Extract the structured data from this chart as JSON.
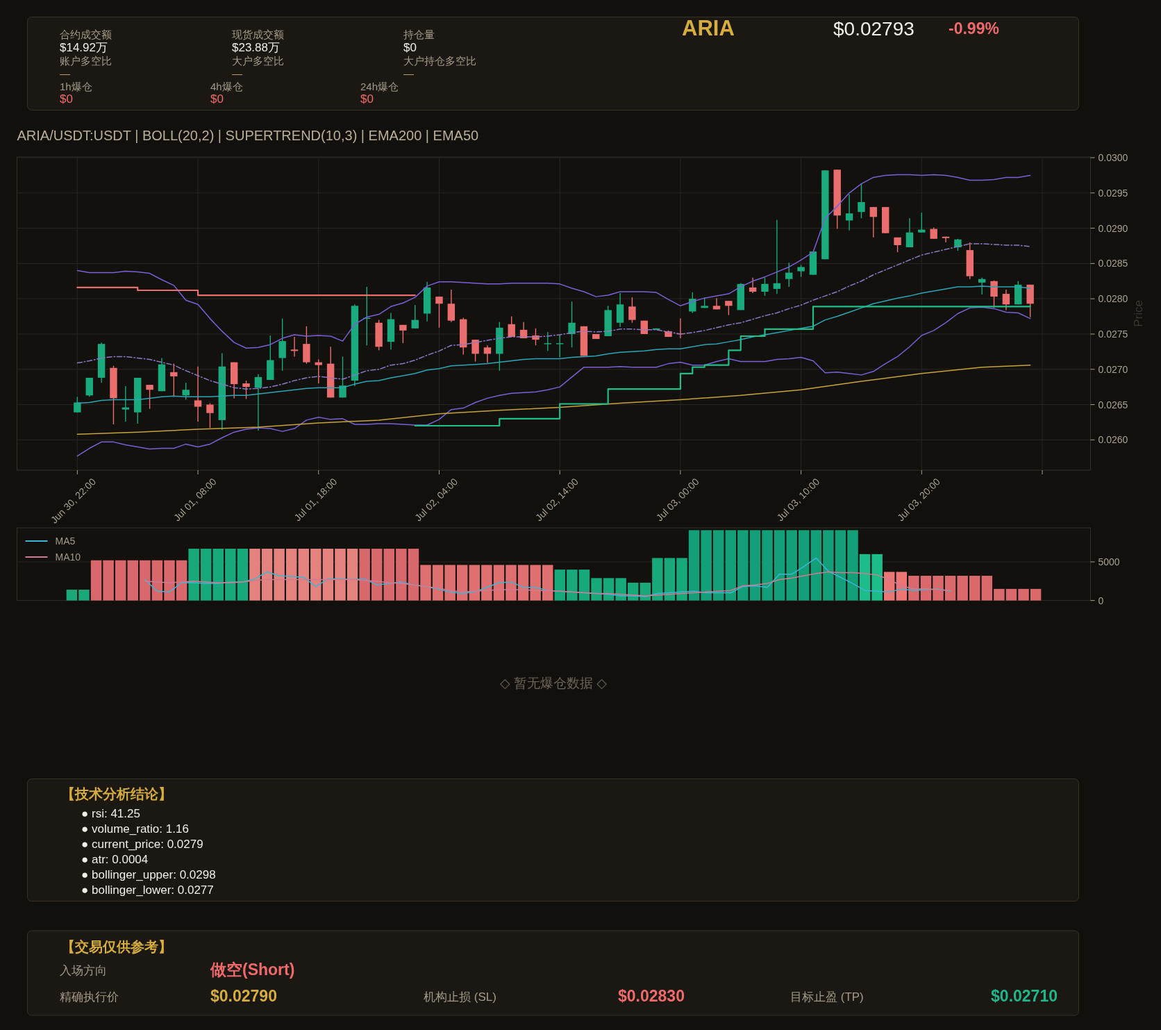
{
  "chart_data": [
    {
      "type": "other",
      "title": "ARIA",
      "annotations": [
        "$0.02793",
        "-0.99%",
        "合约成交额",
        "$14.92万",
        "账户多空比",
        "—",
        "现货成交额",
        "$23.88万",
        "大户多空比",
        "—",
        "持仓量",
        "$0",
        "大户持仓多空比",
        "—",
        "1h爆仓",
        "$0",
        "4h爆仓",
        "$0",
        "24h爆仓",
        "$0"
      ]
    },
    {
      "type": "candlestick",
      "title": "ARIA/USDT:USDT | BOLL(20,2) | SUPERTREND(10,3) | EMA200 | EMA50",
      "ylabel": "Price",
      "x": [
        "--06-30T22:00",
        "--06-30T23:00",
        "--07-01T00:00",
        "--07-01T01:00",
        "--07-01T02:00",
        "--07-01T03:00",
        "--07-01T04:00",
        "--07-01T05:00",
        "--07-01T06:00",
        "--07-01T07:00",
        "--07-01T08:00",
        "--07-01T09:00",
        "--07-01T10:00",
        "--07-01T11:00",
        "--07-01T12:00",
        "--07-01T13:00",
        "--07-01T14:00",
        "--07-01T15:00",
        "--07-01T16:00",
        "--07-01T17:00",
        "--07-01T18:00",
        "--07-01T19:00",
        "--07-01T20:00",
        "--07-01T21:00",
        "--07-01T22:00",
        "--07-01T23:00",
        "--07-02T00:00",
        "--07-02T01:00",
        "--07-02T02:00",
        "--07-02T03:00",
        "--07-02T04:00",
        "--07-02T05:00",
        "--07-02T06:00",
        "--07-02T07:00",
        "--07-02T08:00",
        "--07-02T09:00",
        "--07-02T10:00",
        "--07-02T11:00",
        "--07-02T12:00",
        "--07-02T13:00",
        "--07-02T14:00",
        "--07-02T15:00",
        "--07-02T16:00",
        "--07-02T17:00",
        "--07-02T18:00",
        "--07-02T19:00",
        "--07-02T20:00",
        "--07-02T21:00",
        "--07-02T22:00",
        "--07-02T23:00",
        "--07-03T00:00",
        "--07-03T01:00",
        "--07-03T02:00",
        "--07-03T03:00",
        "--07-03T04:00",
        "--07-03T05:00",
        "--07-03T06:00",
        "--07-03T07:00",
        "--07-03T08:00",
        "--07-03T09:00",
        "--07-03T10:00",
        "--07-03T11:00",
        "--07-03T12:00",
        "--07-03T13:00",
        "--07-03T14:00",
        "--07-03T15:00",
        "--07-03T16:00",
        "--07-03T17:00",
        "--07-03T18:00",
        "--07-03T19:00",
        "--07-03T20:00",
        "--07-03T21:00",
        "--07-03T22:00",
        "--07-03T23:00",
        "--07-04T00:00",
        "--07-04T01:00",
        "--07-04T02:00",
        "--07-04T03:00",
        "--07-04T04:00",
        "--07-04T05:00"
      ],
      "ohlc": [
        [
          0.02639,
          0.02661,
          0.02639,
          0.02653
        ],
        [
          0.02663,
          0.02688,
          0.02661,
          0.02688
        ],
        [
          0.02688,
          0.02738,
          0.02681,
          0.02736
        ],
        [
          0.02702,
          0.02705,
          0.02622,
          0.02659
        ],
        [
          0.02643,
          0.02676,
          0.02626,
          0.02646
        ],
        [
          0.02639,
          0.02688,
          0.02623,
          0.02688
        ],
        [
          0.02678,
          0.02678,
          0.02644,
          0.02671
        ],
        [
          0.02669,
          0.02716,
          0.02669,
          0.02707
        ],
        [
          0.02696,
          0.02708,
          0.02661,
          0.0269
        ],
        [
          0.02663,
          0.02681,
          0.02657,
          0.02671
        ],
        [
          0.02656,
          0.02704,
          0.02626,
          0.02647
        ],
        [
          0.0265,
          0.02652,
          0.02617,
          0.02638
        ],
        [
          0.02628,
          0.02723,
          0.02614,
          0.02704
        ],
        [
          0.0271,
          0.0271,
          0.02659,
          0.02679
        ],
        [
          0.0268,
          0.02684,
          0.02658,
          0.02675
        ],
        [
          0.02674,
          0.02693,
          0.02613,
          0.02689
        ],
        [
          0.02685,
          0.02748,
          0.02685,
          0.02713
        ],
        [
          0.02716,
          0.02772,
          0.02698,
          0.0274
        ],
        [
          0.02728,
          0.02746,
          0.02718,
          0.02726
        ],
        [
          0.02736,
          0.02761,
          0.02708,
          0.0271
        ],
        [
          0.0271,
          0.02714,
          0.0268,
          0.02706
        ],
        [
          0.02708,
          0.02732,
          0.0266,
          0.0266
        ],
        [
          0.0266,
          0.02718,
          0.0266,
          0.02677
        ],
        [
          0.02684,
          0.02792,
          0.02676,
          0.0279
        ],
        [
          0.02772,
          0.02817,
          0.02734,
          0.02773
        ],
        [
          0.02766,
          0.0277,
          0.02727,
          0.02732
        ],
        [
          0.02739,
          0.0278,
          0.02728,
          0.02771
        ],
        [
          0.02763,
          0.02763,
          0.02737,
          0.02755
        ],
        [
          0.02758,
          0.02791,
          0.02758,
          0.0277
        ],
        [
          0.02779,
          0.02824,
          0.02768,
          0.02816
        ],
        [
          0.02803,
          0.02803,
          0.02759,
          0.02793
        ],
        [
          0.02793,
          0.02813,
          0.02767,
          0.02769
        ],
        [
          0.02771,
          0.02773,
          0.02721,
          0.02731
        ],
        [
          0.02742,
          0.02742,
          0.02711,
          0.02722
        ],
        [
          0.02731,
          0.02734,
          0.02709,
          0.02722
        ],
        [
          0.02722,
          0.02767,
          0.02698,
          0.02759
        ],
        [
          0.02764,
          0.02775,
          0.02746,
          0.02746
        ],
        [
          0.02756,
          0.02767,
          0.02744,
          0.02744
        ],
        [
          0.02748,
          0.02758,
          0.02734,
          0.02742
        ],
        [
          0.02736,
          0.02753,
          0.02726,
          0.02737
        ],
        [
          0.02736,
          0.02749,
          0.02717,
          0.02737
        ],
        [
          0.0275,
          0.02796,
          0.02731,
          0.02766
        ],
        [
          0.02761,
          0.02761,
          0.02719,
          0.02719
        ],
        [
          0.0275,
          0.0275,
          0.02743,
          0.02743
        ],
        [
          0.02747,
          0.0279,
          0.02747,
          0.02784
        ],
        [
          0.02766,
          0.02808,
          0.0276,
          0.02792
        ],
        [
          0.02789,
          0.02802,
          0.02766,
          0.0277
        ],
        [
          0.02769,
          0.02769,
          0.0275,
          0.0275
        ],
        [
          0.02756,
          0.02758,
          0.02756,
          0.02758
        ],
        [
          0.02754,
          0.02755,
          0.02746,
          0.02746
        ],
        [
          0.02751,
          0.02772,
          0.02744,
          0.0275
        ],
        [
          0.02782,
          0.02809,
          0.0278,
          0.028
        ],
        [
          0.02787,
          0.02802,
          0.02787,
          0.0279
        ],
        [
          0.0279,
          0.02801,
          0.02785,
          0.02785
        ],
        [
          0.02797,
          0.02797,
          0.02777,
          0.0279
        ],
        [
          0.02784,
          0.02822,
          0.02784,
          0.02821
        ],
        [
          0.02816,
          0.0283,
          0.02808,
          0.0281
        ],
        [
          0.0281,
          0.0283,
          0.02804,
          0.02821
        ],
        [
          0.02814,
          0.02912,
          0.02807,
          0.02822
        ],
        [
          0.02828,
          0.02851,
          0.02817,
          0.02837
        ],
        [
          0.02839,
          0.02848,
          0.02831,
          0.02845
        ],
        [
          0.02834,
          0.02867,
          0.02834,
          0.02867
        ],
        [
          0.02856,
          0.02982,
          0.02856,
          0.02982
        ],
        [
          0.02983,
          0.02983,
          0.02899,
          0.02918
        ],
        [
          0.02911,
          0.02948,
          0.02897,
          0.02921
        ],
        [
          0.02923,
          0.02963,
          0.02914,
          0.02937
        ],
        [
          0.0293,
          0.0293,
          0.02887,
          0.02916
        ],
        [
          0.0293,
          0.0293,
          0.02893,
          0.02893
        ],
        [
          0.02887,
          0.02887,
          0.02866,
          0.02876
        ],
        [
          0.02873,
          0.02914,
          0.02873,
          0.02894
        ],
        [
          0.02894,
          0.02922,
          0.02894,
          0.02898
        ],
        [
          0.02899,
          0.02901,
          0.02885,
          0.02885
        ],
        [
          0.02888,
          0.02888,
          0.0288,
          0.02886
        ],
        [
          0.02873,
          0.02885,
          0.02868,
          0.02884
        ],
        [
          0.02869,
          0.0288,
          0.02828,
          0.02832
        ],
        [
          0.02823,
          0.0283,
          0.02806,
          0.02828
        ],
        [
          0.02825,
          0.02826,
          0.02787,
          0.02803
        ],
        [
          0.02807,
          0.02813,
          0.02784,
          0.02792
        ],
        [
          0.02792,
          0.02825,
          0.02792,
          0.0282
        ],
        [
          0.0282,
          0.0282,
          0.02774,
          0.02793
        ]
      ],
      "colors": [
        "#19aa7d",
        "#19aa7d",
        "#19aa7d",
        "#eb6e6e",
        "#19aa7d",
        "#19aa7d",
        "#eb6e6e",
        "#19aa7d",
        "#eb6e6e",
        "#19aa7d",
        "#eb6e6e",
        "#eb6e6e",
        "#19aa7d",
        "#eb6e6e",
        "#eb6e6e",
        "#19aa7d",
        "#19aa7d",
        "#19aa7d",
        "#eb6e6e",
        "#eb6e6e",
        "#eb6e6e",
        "#eb6e6e",
        "#19aa7d",
        "#19aa7d",
        "#19aa7d",
        "#eb6e6e",
        "#19aa7d",
        "#eb6e6e",
        "#19aa7d",
        "#19aa7d",
        "#eb6e6e",
        "#eb6e6e",
        "#eb6e6e",
        "#eb6e6e",
        "#eb6e6e",
        "#19aa7d",
        "#eb6e6e",
        "#eb6e6e",
        "#eb6e6e",
        "#19aa7d",
        "#19aa7d",
        "#19aa7d",
        "#eb6e6e",
        "#eb6e6e",
        "#19aa7d",
        "#19aa7d",
        "#eb6e6e",
        "#eb6e6e",
        "#19aa7d",
        "#eb6e6e",
        "#eb6e6e",
        "#19aa7d",
        "#19aa7d",
        "#eb6e6e",
        "#eb6e6e",
        "#19aa7d",
        "#eb6e6e",
        "#19aa7d",
        "#19aa7d",
        "#19aa7d",
        "#19aa7d",
        "#19aa7d",
        "#19aa7d",
        "#eb6e6e",
        "#19aa7d",
        "#19aa7d",
        "#eb6e6e",
        "#eb6e6e",
        "#eb6e6e",
        "#19aa7d",
        "#19aa7d",
        "#eb6e6e",
        "#eb6e6e",
        "#19aa7d",
        "#eb6e6e",
        "#19aa7d",
        "#eb6e6e",
        "#eb6e6e",
        "#19aa7d",
        "#eb6e6e"
      ],
      "series": [
        {
          "type": "line",
          "color": "#7b5fd7",
          "values": [
            0.0284,
            0.02837,
            0.02837,
            0.02837,
            0.02839,
            0.02838,
            0.02836,
            0.02827,
            0.02819,
            0.02798,
            0.02792,
            0.02772,
            0.02754,
            0.02738,
            0.0273,
            0.02731,
            0.02735,
            0.02744,
            0.02749,
            0.02747,
            0.02748,
            0.02747,
            0.0274,
            0.02764,
            0.02774,
            0.02778,
            0.02789,
            0.02794,
            0.02802,
            0.02818,
            0.02824,
            0.02824,
            0.02823,
            0.02822,
            0.02821,
            0.02821,
            0.02822,
            0.02822,
            0.02822,
            0.02822,
            0.02821,
            0.02815,
            0.0281,
            0.02803,
            0.02805,
            0.0281,
            0.0281,
            0.0281,
            0.02809,
            0.02799,
            0.0279,
            0.02796,
            0.02801,
            0.02804,
            0.02807,
            0.02817,
            0.02825,
            0.02831,
            0.02838,
            0.02845,
            0.02855,
            0.02866,
            0.02914,
            0.02931,
            0.0295,
            0.02963,
            0.02972,
            0.02975,
            0.02976,
            0.02976,
            0.02975,
            0.02976,
            0.02975,
            0.02972,
            0.02968,
            0.02968,
            0.02969,
            0.02972,
            0.02972,
            0.02975
          ]
        },
        {
          "type": "line",
          "color": "#8a78c6",
          "line_style": "dashdot",
          "values": [
            0.02709,
            0.02712,
            0.02716,
            0.02718,
            0.02718,
            0.02716,
            0.02714,
            0.0271,
            0.02706,
            0.02698,
            0.02691,
            0.02684,
            0.02679,
            0.02674,
            0.02672,
            0.02673,
            0.02675,
            0.02679,
            0.02684,
            0.02688,
            0.0269,
            0.02688,
            0.02686,
            0.02692,
            0.02698,
            0.027,
            0.02706,
            0.02708,
            0.02713,
            0.0272,
            0.02726,
            0.02734,
            0.02735,
            0.02738,
            0.02741,
            0.02744,
            0.02746,
            0.02746,
            0.02746,
            0.02747,
            0.02749,
            0.02752,
            0.02754,
            0.02753,
            0.02754,
            0.02757,
            0.02757,
            0.02756,
            0.02756,
            0.02753,
            0.0275,
            0.02752,
            0.02755,
            0.02759,
            0.02763,
            0.02766,
            0.02771,
            0.02776,
            0.0278,
            0.02786,
            0.02791,
            0.02798,
            0.02804,
            0.0281,
            0.02818,
            0.02825,
            0.02834,
            0.02841,
            0.02848,
            0.02855,
            0.02862,
            0.02866,
            0.0287,
            0.02874,
            0.02878,
            0.02878,
            0.02877,
            0.02876,
            0.02876,
            0.02874
          ]
        },
        {
          "type": "line",
          "color": "#7b5fd7",
          "values": [
            0.02577,
            0.02588,
            0.02597,
            0.02597,
            0.02593,
            0.0259,
            0.02587,
            0.02588,
            0.02588,
            0.02594,
            0.0259,
            0.02594,
            0.02603,
            0.02611,
            0.02615,
            0.02617,
            0.02616,
            0.02612,
            0.02616,
            0.02628,
            0.02632,
            0.02629,
            0.0263,
            0.02622,
            0.02622,
            0.02623,
            0.02623,
            0.02622,
            0.02621,
            0.02621,
            0.02629,
            0.02643,
            0.02645,
            0.02653,
            0.02659,
            0.02663,
            0.02666,
            0.02667,
            0.02668,
            0.02671,
            0.02675,
            0.02689,
            0.02703,
            0.02703,
            0.02703,
            0.02704,
            0.02703,
            0.02703,
            0.02703,
            0.02708,
            0.0271,
            0.02706,
            0.02706,
            0.02711,
            0.02715,
            0.02711,
            0.02711,
            0.02711,
            0.02714,
            0.02715,
            0.02717,
            0.02712,
            0.02695,
            0.02696,
            0.02694,
            0.02692,
            0.02697,
            0.02708,
            0.02718,
            0.02732,
            0.02748,
            0.02755,
            0.02766,
            0.02779,
            0.02787,
            0.02788,
            0.02786,
            0.02781,
            0.0278,
            0.02772
          ]
        },
        {
          "type": "line",
          "color": "#2aa6b8",
          "values": [
            0.02652,
            0.02653,
            0.02656,
            0.02657,
            0.02657,
            0.02657,
            0.02659,
            0.02661,
            0.02662,
            0.02661,
            0.02661,
            0.02661,
            0.02662,
            0.02663,
            0.02663,
            0.02665,
            0.02667,
            0.02669,
            0.02671,
            0.02673,
            0.02674,
            0.02674,
            0.02674,
            0.02679,
            0.02683,
            0.02684,
            0.02688,
            0.02691,
            0.02694,
            0.02699,
            0.02701,
            0.02705,
            0.02706,
            0.02707,
            0.02708,
            0.0271,
            0.02712,
            0.02714,
            0.02715,
            0.02715,
            0.02715,
            0.02717,
            0.02718,
            0.02719,
            0.02722,
            0.02724,
            0.02725,
            0.02726,
            0.02728,
            0.02729,
            0.02729,
            0.02732,
            0.02735,
            0.02736,
            0.02739,
            0.02742,
            0.02746,
            0.02749,
            0.02752,
            0.02755,
            0.02758,
            0.02761,
            0.0277,
            0.02775,
            0.02781,
            0.02787,
            0.02793,
            0.02797,
            0.02801,
            0.02804,
            0.02808,
            0.02811,
            0.02814,
            0.02817,
            0.02817,
            0.02818,
            0.02817,
            0.02817,
            0.02817,
            0.02815
          ]
        },
        {
          "type": "line",
          "color": "#c9a23a",
          "x": [
            "--06-30T22:00",
            "--07-01T03:00",
            "--07-01T08:00",
            "--07-01T13:00",
            "--07-01T18:00",
            "--07-01T23:00",
            "--07-02T04:00",
            "--07-02T09:00",
            "--07-02T14:00",
            "--07-02T19:00",
            "--07-03T00:00",
            "--07-03T05:00",
            "--07-03T10:00",
            "--07-03T15:00",
            "--07-03T20:00",
            "--07-04T01:00",
            "--07-04T05:00"
          ],
          "values": [
            0.02608,
            0.02611,
            0.02615,
            0.02618,
            0.02624,
            0.02628,
            0.02637,
            0.02642,
            0.02646,
            0.02652,
            0.02657,
            0.02663,
            0.02671,
            0.02683,
            0.02694,
            0.02703,
            0.02706
          ]
        },
        {
          "type": "step",
          "color": "#eb6e6e",
          "values": [
            0.02816,
            0.02816,
            0.02816,
            0.02816,
            0.02816,
            0.02812,
            0.02812,
            0.02812,
            0.02812,
            0.02812,
            0.02805,
            0.02805,
            0.02805,
            0.02805,
            0.02805,
            0.02805,
            0.02805,
            0.02805,
            0.02805,
            0.02805,
            0.02805,
            0.02805,
            0.02805,
            0.02805,
            0.02805,
            0.02805,
            0.02805,
            0.02805,
            0.02805,
            null,
            null,
            null,
            null,
            null,
            null,
            null,
            null,
            null,
            null,
            null,
            null,
            null,
            null,
            null,
            null,
            null,
            null,
            null,
            null,
            null,
            null,
            null,
            null,
            null,
            null,
            null,
            null,
            null,
            null,
            null,
            null,
            null,
            null,
            null,
            null,
            null,
            null,
            null,
            null,
            null,
            null,
            null,
            null,
            null,
            null,
            null,
            null,
            null,
            null,
            null
          ]
        },
        {
          "type": "step",
          "color": "#1fbf8a",
          "values": [
            null,
            null,
            null,
            null,
            null,
            null,
            null,
            null,
            null,
            null,
            null,
            null,
            null,
            null,
            null,
            null,
            null,
            null,
            null,
            null,
            null,
            null,
            null,
            null,
            null,
            null,
            null,
            null,
            0.0262,
            0.0262,
            0.0262,
            0.0262,
            0.0262,
            0.0262,
            0.0262,
            0.0263,
            0.0263,
            0.0263,
            0.0263,
            0.0263,
            0.02651,
            0.02651,
            0.02651,
            0.02651,
            0.02672,
            0.02672,
            0.02672,
            0.02672,
            0.02672,
            0.02672,
            0.02694,
            0.02703,
            0.02706,
            0.02706,
            0.02727,
            0.02747,
            0.02747,
            0.02757,
            0.02757,
            0.02757,
            0.02757,
            0.02789,
            0.02789,
            0.02789,
            0.02789,
            0.02789,
            0.02789,
            0.02789,
            0.02789,
            0.02789,
            0.02789,
            0.02789,
            0.02789,
            0.02789,
            0.02789,
            0.02789,
            0.02789,
            0.02789,
            0.02789,
            0.02789
          ]
        }
      ],
      "xlim": [
        "--06-30T17:00",
        "--07-04T10:00"
      ],
      "xticks": [
        {
          "value": "--06-30T22:00",
          "label": "Jun 30, 22:00"
        },
        {
          "value": "--07-01T08:00",
          "label": "Jul 01, 08:00"
        },
        {
          "value": "--07-01T18:00",
          "label": "Jul 01, 18:00"
        },
        {
          "value": "--07-02T04:00",
          "label": "Jul 02, 04:00"
        },
        {
          "value": "--07-02T14:00",
          "label": "Jul 02, 14:00"
        },
        {
          "value": "--07-03T00:00",
          "label": "Jul 03, 00:00"
        },
        {
          "value": "--07-03T10:00",
          "label": "Jul 03, 10:00"
        },
        {
          "value": "--07-03T20:00",
          "label": "Jul 03, 20:00"
        },
        {
          "value": "--07-04T06:00",
          "label": null
        }
      ],
      "ylim": [
        0.02557,
        0.03001
      ],
      "yticks": [
        {
          "value": 0.026,
          "label": "0.0260"
        },
        0.0265,
        {
          "value": 0.027,
          "label": "0.0270"
        },
        0.0275,
        {
          "value": 0.028,
          "label": "0.0280"
        },
        0.0285,
        {
          "value": 0.029,
          "label": "0.0290"
        },
        0.0295,
        {
          "value": 0.03,
          "label": "0.0300"
        }
      ],
      "grid": true
    },
    {
      "type": "bar",
      "categories": [
        null,
        null,
        null,
        null,
        null,
        null,
        null,
        null,
        null,
        null,
        null,
        null,
        null,
        null,
        null,
        null,
        null,
        null,
        null,
        null,
        null,
        null,
        null,
        null,
        null,
        null,
        null,
        null,
        null,
        null,
        null,
        null,
        null,
        null,
        null,
        null,
        null,
        null,
        null,
        null,
        null,
        null,
        null,
        null,
        null,
        null,
        null,
        null,
        null,
        null,
        null,
        null,
        null,
        null,
        null,
        null,
        null,
        null,
        null,
        null,
        null,
        null,
        null,
        null,
        null,
        null,
        null,
        null,
        null,
        null,
        null,
        null,
        null,
        null,
        null,
        null,
        null,
        null,
        null,
        null,
        null,
        null,
        null,
        null,
        null,
        null,
        null,
        null
      ],
      "series": [
        {
          "type": "bar",
          "values": [
            null,
            null,
            null,
            null,
            1400,
            1400,
            5200,
            5200,
            5200,
            5200,
            5200,
            5200,
            5200,
            5200,
            6700,
            6700,
            6700,
            6700,
            6700,
            6700,
            6700,
            6700,
            6700,
            6700,
            6700,
            6700,
            6700,
            6700,
            6700,
            6700,
            6700,
            6700,
            6700,
            4600,
            4600,
            4600,
            4600,
            4600,
            4600,
            4600,
            4600,
            4600,
            4600,
            4600,
            4000,
            4000,
            4000,
            2900,
            2900,
            2900,
            2300,
            2300,
            5500,
            5500,
            5500,
            9100,
            9100,
            9100,
            9100,
            9100,
            9100,
            9100,
            9100,
            9100,
            9100,
            9100,
            9100,
            9100,
            9100,
            6000,
            6000,
            3700,
            3700,
            3200,
            3200,
            3200,
            3200,
            3200,
            3200,
            3200,
            1500,
            1500,
            1500,
            1500,
            null,
            null,
            null,
            null
          ],
          "colors": [
            null,
            null,
            null,
            null,
            "#1aa87b",
            "#1aa87b",
            "#d8686b",
            "#d8686b",
            "#d8686b",
            "#d8686b",
            "#d8686b",
            "#d8686b",
            "#d8686b",
            "#d8686b",
            "#17a97c",
            "#17a97c",
            "#17a97c",
            "#17a97c",
            "#17a97c",
            "#e4837d",
            "#e4837d",
            "#e4837d",
            "#e4837d",
            "#e4837d",
            "#e4837d",
            "#e4837d",
            "#e4837d",
            "#e4837d",
            "#d8686b",
            "#d8686b",
            "#d8686b",
            "#d8686b",
            "#d8686b",
            "#e0706f",
            "#e0706f",
            "#e0706f",
            "#e0706f",
            "#e0706f",
            "#e0706f",
            "#e0706f",
            "#e0706f",
            "#e0706f",
            "#e0706f",
            "#e0706f",
            "#17a97c",
            "#17a97c",
            "#17a97c",
            "#17a97c",
            "#17a97c",
            "#17a97c",
            "#17a97c",
            "#17a97c",
            "#17a97c",
            "#17a97c",
            "#17a97c",
            "#13a078",
            "#13a078",
            "#13a078",
            "#13a078",
            "#13a078",
            "#13a078",
            "#13a078",
            "#13a078",
            "#13a078",
            "#13a078",
            "#13a078",
            "#13a078",
            "#13a078",
            "#13a078",
            "#1dbd8b",
            "#1dbd8b",
            "#ec7676",
            "#ec7676",
            "#d9696b",
            "#d9696b",
            "#d9696b",
            "#d9696b",
            "#d9696b",
            "#d9696b",
            "#d9696b",
            "#d86a6c",
            "#d86a6c",
            "#d86a6c",
            "#d86a6c",
            null,
            null,
            null,
            null
          ]
        },
        {
          "type": "line",
          "name": "MA5",
          "color": "#3fb6d6",
          "values": [
            null,
            null,
            null,
            null,
            null,
            null,
            null,
            null,
            null,
            null,
            2700,
            1200,
            1100,
            2300,
            2300,
            2200,
            2200,
            2400,
            2400,
            2800,
            3700,
            3200,
            3100,
            3000,
            1800,
            2800,
            2800,
            2700,
            2800,
            2000,
            2200,
            2400,
            2000,
            1800,
            1500,
            1100,
            900,
            1100,
            1700,
            2300,
            2400,
            1700,
            1700,
            1300,
            1200,
            1100,
            1000,
            900,
            800,
            600,
            600,
            500,
            900,
            1000,
            1100,
            1200,
            1000,
            1000,
            1000,
            1800,
            1900,
            1700,
            3400,
            3400,
            4400,
            5500,
            3800,
            3000,
            2200,
            1300,
            1200,
            1100,
            1500,
            1300,
            1400,
            1500,
            1200,
            null,
            null,
            null,
            null,
            null,
            null,
            null,
            null,
            null,
            null,
            null
          ]
        },
        {
          "type": "line",
          "name": "MA10",
          "color": "#d27a92",
          "values": [
            null,
            null,
            null,
            null,
            null,
            null,
            null,
            null,
            null,
            null,
            2500,
            2400,
            2300,
            2400,
            2500,
            2400,
            2300,
            2300,
            2400,
            2600,
            2700,
            2700,
            2700,
            2700,
            2700,
            2700,
            2700,
            2700,
            2600,
            2500,
            2300,
            2200,
            2000,
            1800,
            1600,
            1300,
            1100,
            1200,
            1300,
            1400,
            1400,
            1400,
            1300,
            1300,
            1200,
            1100,
            1000,
            900,
            900,
            800,
            700,
            600,
            700,
            800,
            900,
            1000,
            1100,
            1200,
            1300,
            1900,
            2000,
            2200,
            2700,
            2900,
            3200,
            3500,
            3700,
            3600,
            3600,
            3500,
            3300,
            2700,
            1900,
            1500,
            1500,
            1400,
            1300,
            null,
            null,
            null,
            null,
            null,
            null,
            null,
            null,
            null,
            null,
            null
          ]
        }
      ],
      "ylim": [
        0,
        9400
      ],
      "yticks": [
        0,
        5000
      ],
      "tick_labels": "y",
      "grid": "y",
      "legend": "top left"
    },
    {
      "type": "other",
      "annotations": [
        "◇ 暂无爆仓数据 ◇"
      ]
    },
    {
      "type": "other",
      "title": "【技术分析结论】",
      "annotations": [
        "● rsi: 41.25",
        "● volume_ratio: 1.16",
        "● current_price: 0.0279",
        "● atr: 0.0004",
        "● bollinger_upper: 0.0298",
        "● bollinger_lower: 0.0277"
      ]
    },
    {
      "type": "other",
      "title": "【交易仅供参考】",
      "annotations": [
        "入场方向",
        "做空(Short)",
        "精确执行价",
        "$0.02790",
        "机构止损 (SL)",
        "$0.02830",
        "目标止盈 (TP)",
        "$0.02710"
      ]
    }
  ]
}
